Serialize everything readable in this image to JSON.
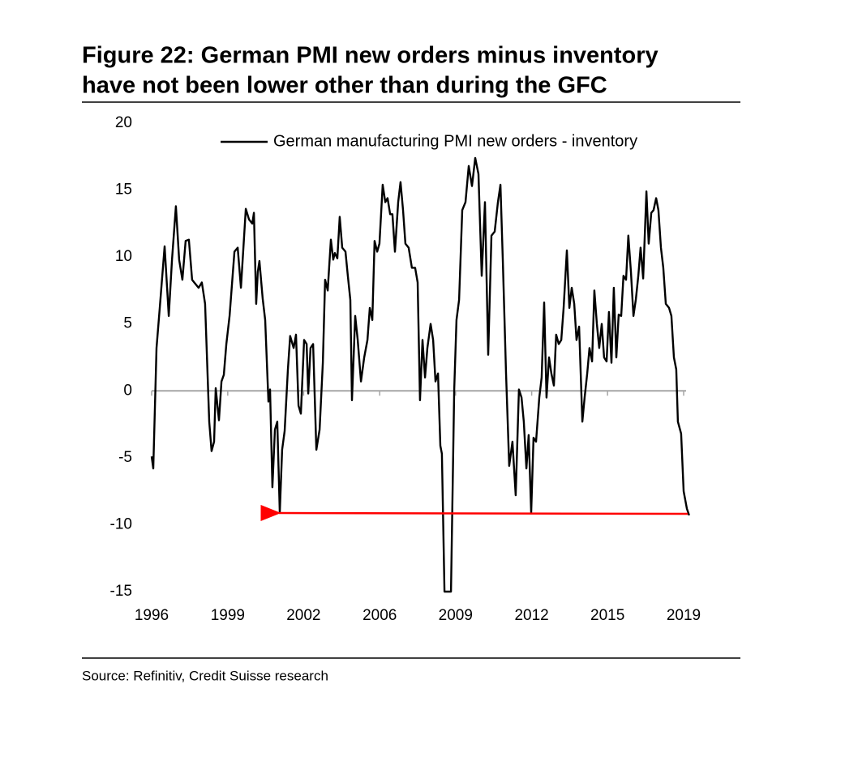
{
  "chart_data": {
    "type": "line",
    "title": [
      "Figure 22: German PMI new orders minus inventory",
      "have not been lower other than during the GFC"
    ],
    "source": "Source: Refinitiv, Credit Suisse research",
    "legend": "top",
    "xlim": [
      1996,
      2019
    ],
    "ylim": [
      -15,
      20
    ],
    "yticks": [
      20,
      15,
      10,
      5,
      0,
      -5,
      -10,
      -15
    ],
    "xticks": [
      {
        "value": 1996,
        "label": "1996"
      },
      {
        "value": 1999.29,
        "label": "1999"
      },
      {
        "value": 2002.57,
        "label": "2002"
      },
      {
        "value": 2005.86,
        "label": "2006"
      },
      {
        "value": 2009.14,
        "label": "2009"
      },
      {
        "value": 2012.43,
        "label": "2012"
      },
      {
        "value": 2015.71,
        "label": "2015"
      },
      {
        "value": 2019,
        "label": "2019"
      }
    ],
    "zero_line_color": "#a6a6a6",
    "series": [
      {
        "name": "German manufacturing PMI new orders - inventory",
        "color": "#000000",
        "x": [
          1996.0,
          1996.07,
          1996.21,
          1996.35,
          1996.56,
          1996.74,
          1996.88,
          1997.05,
          1997.19,
          1997.33,
          1997.47,
          1997.61,
          1997.75,
          1997.89,
          1998.03,
          1998.17,
          1998.31,
          1998.49,
          1998.59,
          1998.7,
          1998.77,
          1998.91,
          1999.02,
          1999.12,
          1999.23,
          1999.37,
          1999.58,
          1999.72,
          1999.86,
          2000.07,
          2000.21,
          2000.35,
          2000.42,
          2000.52,
          2000.59,
          2000.66,
          2000.8,
          2000.91,
          2001.05,
          2001.12,
          2001.22,
          2001.33,
          2001.43,
          2001.54,
          2001.64,
          2001.75,
          2001.89,
          2001.99,
          2002.14,
          2002.24,
          2002.35,
          2002.45,
          2002.59,
          2002.7,
          2002.77,
          2002.87,
          2002.98,
          2003.12,
          2003.26,
          2003.4,
          2003.5,
          2003.61,
          2003.75,
          2003.85,
          2003.92,
          2004.03,
          2004.13,
          2004.24,
          2004.38,
          2004.48,
          2004.59,
          2004.66,
          2004.8,
          2004.91,
          2005.05,
          2005.19,
          2005.33,
          2005.43,
          2005.54,
          2005.64,
          2005.75,
          2005.85,
          2005.99,
          2006.1,
          2006.2,
          2006.31,
          2006.41,
          2006.52,
          2006.66,
          2006.76,
          2006.87,
          2006.97,
          2007.11,
          2007.25,
          2007.39,
          2007.5,
          2007.6,
          2007.71,
          2007.82,
          2007.92,
          2008.06,
          2008.17,
          2008.27,
          2008.38,
          2008.48,
          2008.55,
          2008.66,
          2008.94,
          2009.08,
          2009.18,
          2009.29,
          2009.43,
          2009.57,
          2009.71,
          2009.85,
          2009.99,
          2010.13,
          2010.27,
          2010.41,
          2010.55,
          2010.69,
          2010.83,
          2010.97,
          2011.08,
          2011.18,
          2011.32,
          2011.46,
          2011.6,
          2011.74,
          2011.88,
          2011.99,
          2012.09,
          2012.2,
          2012.3,
          2012.41,
          2012.51,
          2012.62,
          2012.76,
          2012.86,
          2012.97,
          2013.07,
          2013.18,
          2013.28,
          2013.39,
          2013.49,
          2013.6,
          2013.71,
          2013.81,
          2013.95,
          2014.06,
          2014.16,
          2014.27,
          2014.37,
          2014.48,
          2014.62,
          2014.72,
          2014.83,
          2014.93,
          2015.04,
          2015.14,
          2015.25,
          2015.35,
          2015.46,
          2015.56,
          2015.67,
          2015.77,
          2015.88,
          2015.98,
          2016.09,
          2016.19,
          2016.3,
          2016.4,
          2016.51,
          2016.61,
          2016.72,
          2016.83,
          2016.93,
          2017.04,
          2017.14,
          2017.25,
          2017.39,
          2017.49,
          2017.6,
          2017.7,
          2017.81,
          2017.91,
          2018.02,
          2018.12,
          2018.23,
          2018.37,
          2018.47,
          2018.58,
          2018.68,
          2018.75,
          2018.89,
          2019.0,
          2019.14,
          2019.24
        ],
        "values": [
          -4.9,
          -5.8,
          3.2,
          6.2,
          10.8,
          5.6,
          9.8,
          13.8,
          9.8,
          8.3,
          11.2,
          11.3,
          8.3,
          8.0,
          7.7,
          8.1,
          6.5,
          -2.3,
          -4.5,
          -3.8,
          0.2,
          -2.2,
          0.7,
          1.2,
          3.5,
          5.6,
          10.4,
          10.7,
          7.7,
          13.6,
          12.8,
          12.5,
          13.3,
          6.5,
          8.9,
          9.7,
          6.9,
          5.3,
          -0.8,
          0.1,
          -7.2,
          -2.9,
          -2.3,
          -9.1,
          -4.4,
          -3.0,
          1.6,
          4.1,
          3.2,
          4.2,
          -1.1,
          -1.7,
          3.8,
          3.5,
          -0.2,
          3.2,
          3.5,
          -4.4,
          -2.9,
          2.1,
          8.3,
          7.5,
          11.3,
          9.8,
          10.3,
          9.9,
          13.0,
          10.7,
          10.4,
          8.6,
          6.8,
          -0.7,
          5.6,
          3.8,
          0.7,
          2.5,
          3.8,
          6.2,
          5.3,
          11.2,
          10.4,
          11.0,
          15.4,
          14.1,
          14.4,
          13.2,
          13.2,
          10.4,
          14.1,
          15.6,
          13.5,
          11.0,
          10.7,
          9.2,
          9.2,
          8.1,
          -0.7,
          3.8,
          1.0,
          3.2,
          5.0,
          3.8,
          0.7,
          1.3,
          -4.1,
          -4.7,
          -15.0,
          -15.0,
          0.1,
          5.3,
          6.8,
          13.5,
          14.1,
          16.8,
          15.3,
          17.4,
          16.2,
          8.6,
          14.1,
          2.7,
          11.6,
          11.9,
          14.1,
          15.4,
          9.8,
          1.3,
          -5.6,
          -3.8,
          -7.8,
          0.1,
          -0.5,
          -2.3,
          -5.8,
          -3.3,
          -9.1,
          -3.5,
          -3.8,
          -0.5,
          1.0,
          6.6,
          -0.5,
          2.5,
          1.3,
          0.4,
          4.2,
          3.5,
          3.8,
          6.2,
          10.5,
          6.2,
          7.7,
          6.5,
          3.8,
          4.8,
          -2.3,
          -0.5,
          1.3,
          3.2,
          2.2,
          7.5,
          5.0,
          3.2,
          5.0,
          2.5,
          2.2,
          5.9,
          2.1,
          7.7,
          2.5,
          5.7,
          5.6,
          8.6,
          8.3,
          11.6,
          8.9,
          5.6,
          6.8,
          8.6,
          10.7,
          8.4,
          14.9,
          11.0,
          13.3,
          13.5,
          14.4,
          13.5,
          10.7,
          9.2,
          6.5,
          6.2,
          5.6,
          2.5,
          1.6,
          -2.3,
          -3.2,
          -7.5,
          -8.8,
          -9.3
        ]
      }
    ]
  }
}
